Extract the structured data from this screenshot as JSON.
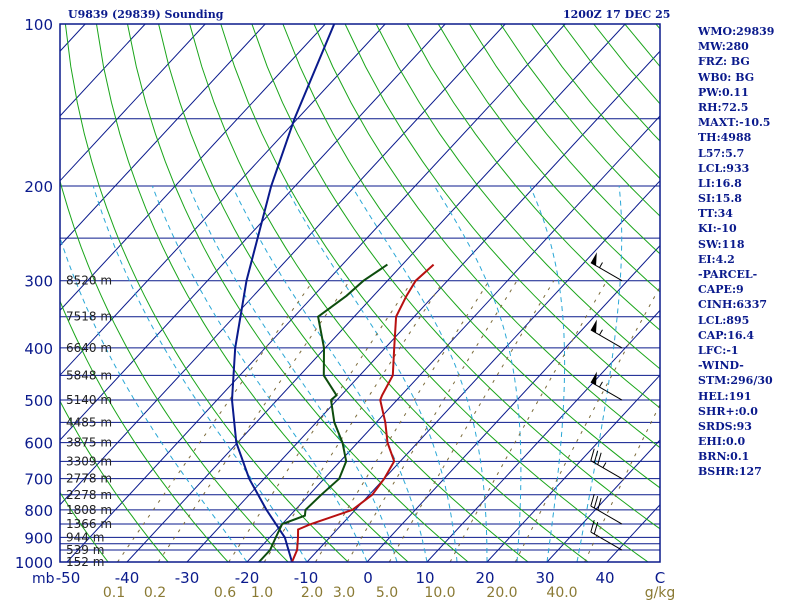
{
  "header": {
    "station": "U9839 (29839) Sounding",
    "time": "1200Z 17 DEC 25"
  },
  "stats": [
    "WMO:29839",
    "MW:280",
    "FRZ: BG",
    "WB0: BG",
    "PW:0.11",
    "RH:72.5",
    "MAXT:-10.5",
    "TH:4988",
    "L57:5.7",
    "LCL:933",
    "LI:16.8",
    "SI:15.8",
    "TT:34",
    "KI:-10",
    "SW:118",
    "EI:4.2",
    "-PARCEL-",
    "CAPE:9",
    "CINH:6337",
    "LCL:895",
    "CAP:16.4",
    "LFC:-1",
    "-WIND-",
    "STM:296/30",
    "HEL:191",
    "SHR+:0.0",
    "SRDS:93",
    "EHI:0.0",
    "BRN:0.1",
    "BSHR:127"
  ],
  "chart_data": {
    "type": "skew-t",
    "colors": {
      "axis": "#0a1a8c",
      "isobar": "#0a1a8c",
      "isotherm": "#0a1a8c",
      "dry_adiabat": "#1aa51a",
      "moist_adiabat": "#2aa7d6",
      "mixing_ratio": "#7c6b3a",
      "temperature": "#b81010",
      "dewpoint": "#0d4d0d",
      "parcel": "#0a1a8c",
      "wind": "#000000"
    },
    "pressure_axis": {
      "unit_label": "mb",
      "range": [
        1000,
        100
      ],
      "tick_labels": [
        "100",
        "200",
        "300",
        "400",
        "500",
        "600",
        "700",
        "800",
        "900",
        "1000"
      ],
      "isobars": [
        100,
        150,
        200,
        250,
        300,
        350,
        400,
        450,
        500,
        550,
        600,
        650,
        700,
        750,
        800,
        850,
        900,
        925,
        950,
        1000
      ]
    },
    "temperature_axis": {
      "range": [
        -50,
        50
      ],
      "tick_labels": [
        "-50",
        "-40",
        "-30",
        "-20",
        "-10",
        "0",
        "10",
        "20",
        "30",
        "40",
        "C"
      ]
    },
    "mixing_ratio_axis": {
      "labels": [
        "0.1",
        "0.2",
        "0.6",
        "1.0",
        "2.0",
        "3.0",
        "5.0",
        "10.0",
        "20.0",
        "40.0"
      ],
      "values": [
        0.1,
        0.2,
        0.6,
        1.0,
        2.0,
        3.0,
        5.0,
        10.0,
        20.0,
        40.0
      ],
      "unit": "g/kg"
    },
    "height_labels": [
      {
        "p": 300,
        "text": "8520 m"
      },
      {
        "p": 350,
        "text": "7518 m"
      },
      {
        "p": 400,
        "text": "6640 m"
      },
      {
        "p": 450,
        "text": "5848 m"
      },
      {
        "p": 500,
        "text": "5140 m"
      },
      {
        "p": 550,
        "text": "4485 m"
      },
      {
        "p": 600,
        "text": "3875 m"
      },
      {
        "p": 650,
        "text": "3309 m"
      },
      {
        "p": 700,
        "text": "2778 m"
      },
      {
        "p": 750,
        "text": "2278 m"
      },
      {
        "p": 800,
        "text": "1808 m"
      },
      {
        "p": 850,
        "text": "1366 m"
      },
      {
        "p": 900,
        "text": "944 m"
      },
      {
        "p": 950,
        "text": "539 m"
      },
      {
        "p": 1000,
        "text": "152 m"
      }
    ],
    "temperature": [
      {
        "p": 1000,
        "t": -12.5
      },
      {
        "p": 950,
        "t": -13.5
      },
      {
        "p": 900,
        "t": -15.3
      },
      {
        "p": 870,
        "t": -16.5
      },
      {
        "p": 850,
        "t": -15.2
      },
      {
        "p": 800,
        "t": -10.5
      },
      {
        "p": 750,
        "t": -9.5
      },
      {
        "p": 700,
        "t": -10.0
      },
      {
        "p": 650,
        "t": -11.0
      },
      {
        "p": 600,
        "t": -15.0
      },
      {
        "p": 550,
        "t": -18.5
      },
      {
        "p": 500,
        "t": -22.8
      },
      {
        "p": 490,
        "t": -23.2
      },
      {
        "p": 450,
        "t": -24.5
      },
      {
        "p": 400,
        "t": -28.5
      },
      {
        "p": 350,
        "t": -33.0
      },
      {
        "p": 320,
        "t": -34.5
      },
      {
        "p": 300,
        "t": -35.3
      },
      {
        "p": 280,
        "t": -34.8
      }
    ],
    "dewpoint": [
      {
        "p": 1000,
        "t": -18.0
      },
      {
        "p": 950,
        "t": -18.0
      },
      {
        "p": 900,
        "t": -19.0
      },
      {
        "p": 850,
        "t": -20.0
      },
      {
        "p": 820,
        "t": -17.5
      },
      {
        "p": 800,
        "t": -18.3
      },
      {
        "p": 750,
        "t": -18.0
      },
      {
        "p": 700,
        "t": -17.5
      },
      {
        "p": 650,
        "t": -19.0
      },
      {
        "p": 600,
        "t": -22.5
      },
      {
        "p": 550,
        "t": -27.0
      },
      {
        "p": 500,
        "t": -31.0
      },
      {
        "p": 490,
        "t": -30.8
      },
      {
        "p": 450,
        "t": -36.0
      },
      {
        "p": 400,
        "t": -40.2
      },
      {
        "p": 350,
        "t": -46.0
      },
      {
        "p": 320,
        "t": -44.5
      },
      {
        "p": 300,
        "t": -44.0
      },
      {
        "p": 280,
        "t": -42.5
      }
    ],
    "parcel": [
      {
        "p": 1000,
        "t": -12.5
      },
      {
        "p": 900,
        "t": -17.5
      },
      {
        "p": 800,
        "t": -24.8
      },
      {
        "p": 700,
        "t": -32.5
      },
      {
        "p": 600,
        "t": -40.2
      },
      {
        "p": 500,
        "t": -47.5
      },
      {
        "p": 400,
        "t": -55.0
      },
      {
        "p": 300,
        "t": -63.5
      },
      {
        "p": 200,
        "t": -74.0
      },
      {
        "p": 150,
        "t": -80.5
      },
      {
        "p": 100,
        "t": -88.5
      }
    ],
    "wind_barbs": [
      {
        "p": 300,
        "dir": 300,
        "spd": 55
      },
      {
        "p": 400,
        "dir": 300,
        "spd": 55
      },
      {
        "p": 500,
        "dir": 300,
        "spd": 55
      },
      {
        "p": 700,
        "dir": 300,
        "spd": 35
      },
      {
        "p": 850,
        "dir": 300,
        "spd": 30
      },
      {
        "p": 950,
        "dir": 300,
        "spd": 20
      }
    ]
  }
}
